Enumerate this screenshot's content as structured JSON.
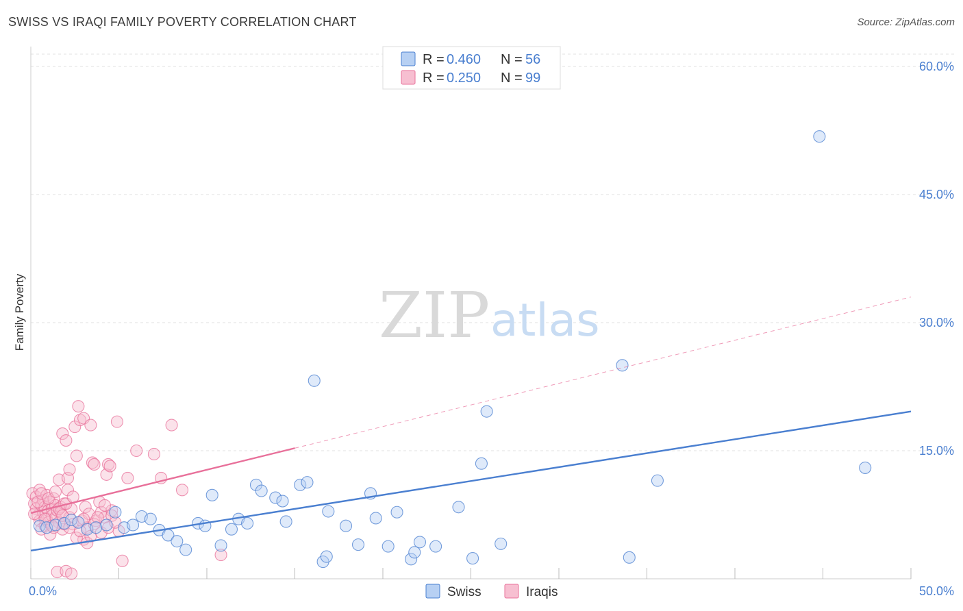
{
  "title": "SWISS VS IRAQI FAMILY POVERTY CORRELATION CHART",
  "source": "Source: ZipAtlas.com",
  "watermark": {
    "zip": "ZIP",
    "atlas": "atlas"
  },
  "colors": {
    "swiss": "#4a7fd0",
    "swiss_fill": "#b7d0f3",
    "iraqis": "#e8709a",
    "iraqis_fill": "#f7bfd1"
  },
  "chart_data": {
    "type": "scatter",
    "title": "SWISS VS IRAQI FAMILY POVERTY CORRELATION CHART",
    "xlabel": "",
    "ylabel": "Family Poverty",
    "xlim": [
      0,
      50
    ],
    "ylim": [
      0,
      60
    ],
    "x_tick_labels": [
      {
        "value": 0,
        "label": "0.0%"
      },
      {
        "value": 50,
        "label": "50.0%"
      }
    ],
    "x_minor_ticks": [
      0,
      5,
      10,
      15,
      20,
      25,
      30,
      35,
      40,
      45,
      50
    ],
    "y_ticks": [
      {
        "value": 15,
        "label": "15.0%"
      },
      {
        "value": 30,
        "label": "30.0%"
      },
      {
        "value": 45,
        "label": "45.0%"
      },
      {
        "value": 60,
        "label": "60.0%"
      }
    ],
    "grid": true,
    "legend": {
      "placement": "top-center",
      "entries": [
        {
          "series": "Swiss",
          "r_label": "R =",
          "r_value": "0.460",
          "n_label": "N =",
          "n_value": "56"
        },
        {
          "series": "Iraqis",
          "r_label": "R =",
          "r_value": "0.250",
          "n_label": "N =",
          "n_value": "99"
        }
      ]
    },
    "bottom_legend": [
      "Swiss",
      "Iraqis"
    ],
    "series": [
      {
        "name": "Swiss",
        "trend": {
          "x": [
            0,
            50
          ],
          "y": [
            3.3,
            19.6
          ],
          "dashed": false
        },
        "points": [
          [
            0.5,
            6.2
          ],
          [
            0.9,
            6.0
          ],
          [
            1.4,
            6.3
          ],
          [
            1.9,
            6.5
          ],
          [
            2.3,
            6.9
          ],
          [
            2.7,
            6.6
          ],
          [
            3.2,
            5.8
          ],
          [
            3.7,
            6.0
          ],
          [
            4.3,
            6.3
          ],
          [
            4.8,
            7.8
          ],
          [
            5.3,
            6.0
          ],
          [
            5.8,
            6.3
          ],
          [
            6.3,
            7.3
          ],
          [
            6.8,
            7.0
          ],
          [
            7.3,
            5.7
          ],
          [
            7.8,
            5.1
          ],
          [
            8.3,
            4.4
          ],
          [
            8.8,
            3.4
          ],
          [
            9.5,
            6.5
          ],
          [
            9.9,
            6.2
          ],
          [
            10.3,
            9.8
          ],
          [
            10.8,
            3.9
          ],
          [
            11.4,
            5.8
          ],
          [
            11.8,
            7.0
          ],
          [
            12.3,
            6.5
          ],
          [
            12.8,
            11.0
          ],
          [
            13.1,
            10.3
          ],
          [
            13.9,
            9.5
          ],
          [
            14.3,
            9.1
          ],
          [
            14.5,
            6.7
          ],
          [
            15.3,
            11.0
          ],
          [
            15.7,
            11.3
          ],
          [
            16.1,
            23.2
          ],
          [
            16.6,
            2.0
          ],
          [
            16.8,
            2.6
          ],
          [
            16.9,
            7.9
          ],
          [
            17.9,
            6.2
          ],
          [
            18.6,
            4.0
          ],
          [
            19.3,
            10.0
          ],
          [
            19.6,
            7.1
          ],
          [
            20.3,
            3.8
          ],
          [
            20.8,
            7.8
          ],
          [
            21.6,
            2.3
          ],
          [
            21.8,
            3.1
          ],
          [
            22.1,
            4.3
          ],
          [
            23.0,
            3.8
          ],
          [
            24.3,
            8.4
          ],
          [
            25.1,
            2.4
          ],
          [
            25.6,
            13.5
          ],
          [
            25.9,
            19.6
          ],
          [
            26.7,
            4.1
          ],
          [
            33.6,
            25.0
          ],
          [
            34.0,
            2.5
          ],
          [
            35.6,
            11.5
          ],
          [
            44.8,
            51.8
          ],
          [
            47.4,
            13.0
          ]
        ]
      },
      {
        "name": "Iraqis",
        "trend": {
          "x": [
            0,
            15
          ],
          "y": [
            7.7,
            15.3
          ],
          "dashed": false
        },
        "trend_extension": {
          "x": [
            15,
            50
          ],
          "y": [
            15.3,
            33.0
          ],
          "dashed": true
        },
        "points": [
          [
            0.1,
            10.0
          ],
          [
            0.2,
            8.8
          ],
          [
            0.3,
            8.2
          ],
          [
            0.3,
            9.6
          ],
          [
            0.4,
            7.4
          ],
          [
            0.5,
            6.8
          ],
          [
            0.5,
            10.4
          ],
          [
            0.6,
            8.6
          ],
          [
            0.6,
            5.8
          ],
          [
            0.7,
            9.2
          ],
          [
            0.7,
            7.8
          ],
          [
            0.8,
            8.4
          ],
          [
            0.8,
            6.2
          ],
          [
            0.9,
            9.8
          ],
          [
            0.9,
            7.0
          ],
          [
            1.0,
            8.0
          ],
          [
            1.0,
            6.6
          ],
          [
            1.1,
            9.0
          ],
          [
            1.1,
            5.2
          ],
          [
            1.2,
            8.2
          ],
          [
            1.2,
            7.4
          ],
          [
            1.3,
            9.4
          ],
          [
            1.3,
            6.0
          ],
          [
            1.4,
            8.6
          ],
          [
            1.4,
            7.2
          ],
          [
            1.5,
            8.0
          ],
          [
            1.5,
            0.8
          ],
          [
            1.6,
            11.6
          ],
          [
            1.6,
            6.6
          ],
          [
            1.7,
            8.4
          ],
          [
            1.7,
            7.8
          ],
          [
            1.8,
            17.0
          ],
          [
            1.8,
            5.8
          ],
          [
            1.9,
            8.8
          ],
          [
            1.9,
            6.4
          ],
          [
            2.0,
            16.2
          ],
          [
            2.0,
            0.9
          ],
          [
            2.1,
            11.8
          ],
          [
            2.1,
            10.4
          ],
          [
            2.2,
            12.8
          ],
          [
            2.2,
            7.2
          ],
          [
            2.3,
            8.2
          ],
          [
            2.3,
            0.6
          ],
          [
            2.4,
            6.4
          ],
          [
            2.5,
            17.8
          ],
          [
            2.6,
            14.4
          ],
          [
            2.7,
            20.2
          ],
          [
            2.8,
            18.6
          ],
          [
            2.9,
            6.8
          ],
          [
            3.0,
            18.8
          ],
          [
            3.0,
            4.6
          ],
          [
            3.1,
            8.4
          ],
          [
            3.2,
            6.0
          ],
          [
            3.3,
            7.6
          ],
          [
            3.4,
            18.0
          ],
          [
            3.5,
            13.6
          ],
          [
            3.6,
            13.4
          ],
          [
            3.7,
            6.8
          ],
          [
            3.9,
            9.0
          ],
          [
            4.0,
            7.8
          ],
          [
            4.2,
            7.2
          ],
          [
            4.3,
            12.2
          ],
          [
            4.4,
            13.4
          ],
          [
            4.5,
            13.2
          ],
          [
            4.6,
            8.0
          ],
          [
            4.9,
            18.4
          ],
          [
            5.0,
            5.6
          ],
          [
            5.2,
            2.1
          ],
          [
            5.5,
            11.8
          ],
          [
            6.0,
            15.0
          ],
          [
            7.0,
            14.6
          ],
          [
            7.4,
            11.8
          ],
          [
            8.0,
            18.0
          ],
          [
            8.6,
            10.4
          ],
          [
            10.8,
            2.8
          ],
          [
            0.2,
            7.6
          ],
          [
            0.4,
            9.0
          ],
          [
            0.6,
            10.0
          ],
          [
            0.8,
            7.0
          ],
          [
            1.0,
            9.4
          ],
          [
            1.2,
            6.2
          ],
          [
            1.4,
            10.2
          ],
          [
            1.6,
            8.2
          ],
          [
            1.8,
            7.4
          ],
          [
            2.0,
            8.8
          ],
          [
            2.2,
            6.0
          ],
          [
            2.4,
            9.6
          ],
          [
            2.6,
            4.8
          ],
          [
            2.8,
            5.6
          ],
          [
            3.0,
            7.0
          ],
          [
            3.2,
            4.2
          ],
          [
            3.4,
            5.0
          ],
          [
            3.6,
            6.4
          ],
          [
            3.8,
            7.2
          ],
          [
            4.0,
            5.4
          ],
          [
            4.2,
            8.6
          ],
          [
            4.4,
            6.0
          ],
          [
            4.6,
            7.4
          ],
          [
            4.8,
            6.6
          ]
        ]
      }
    ]
  }
}
